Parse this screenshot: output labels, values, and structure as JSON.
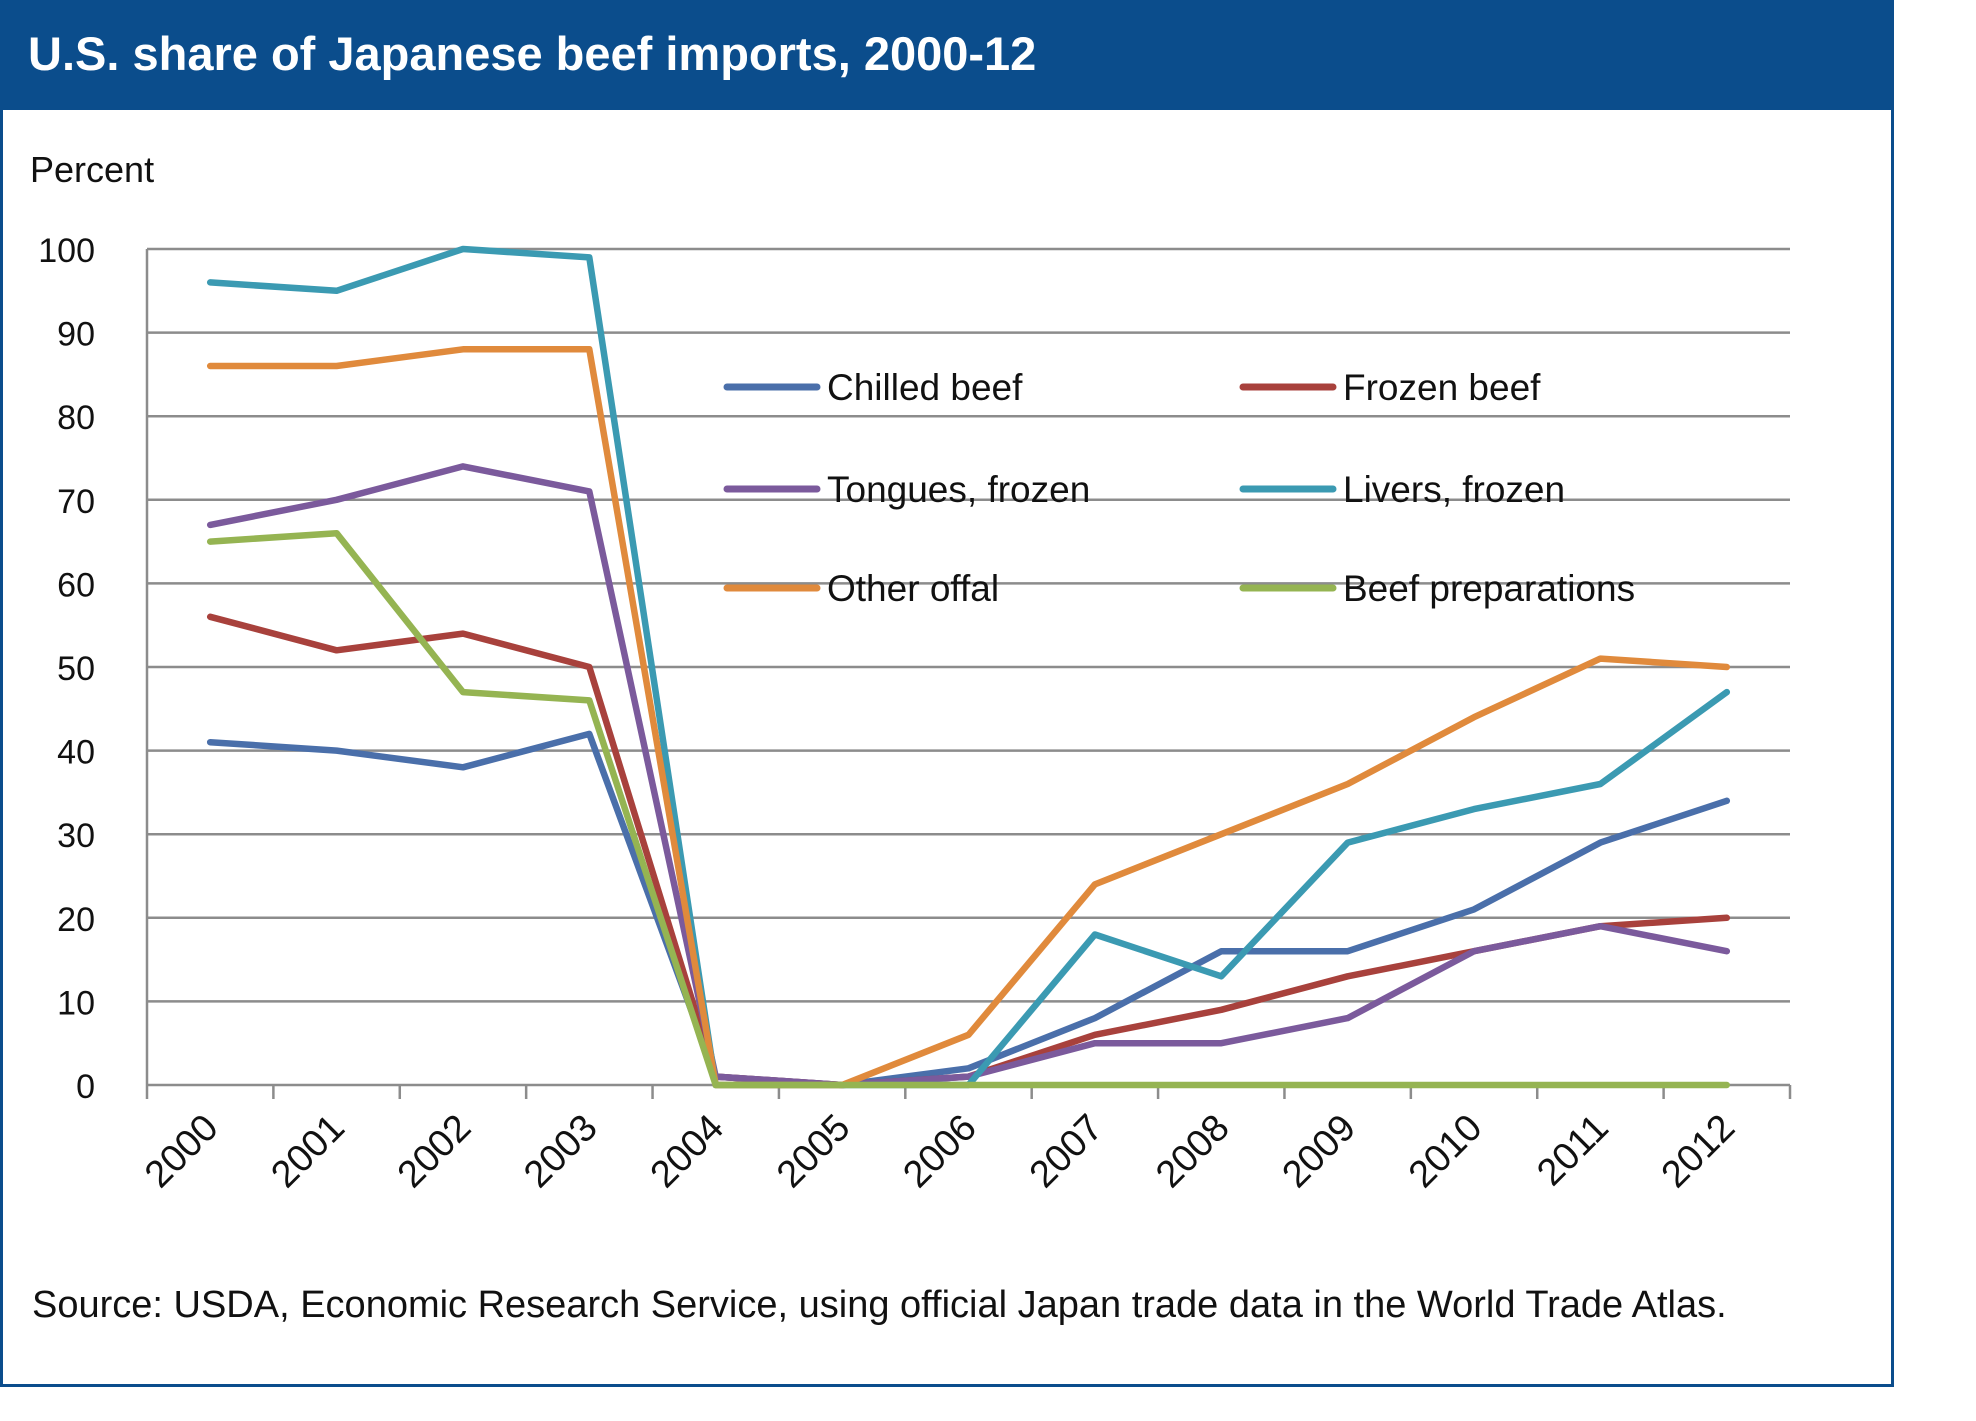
{
  "title": "U.S. share of Japanese beef imports, 2000-12",
  "source": "Source: USDA, Economic Research Service, using official Japan trade data in the World Trade Atlas.",
  "chart_data": {
    "type": "line",
    "title": "U.S. share of Japanese beef imports, 2000-12",
    "ylabel": "Percent",
    "xlabel": "",
    "ylim": [
      0,
      100
    ],
    "yticks": [
      "0",
      "10",
      "20",
      "30",
      "40",
      "50",
      "60",
      "70",
      "80",
      "90",
      "100"
    ],
    "categories": [
      "2000",
      "2001",
      "2002",
      "2003",
      "2004",
      "2005",
      "2006",
      "2007",
      "2008",
      "2009",
      "2010",
      "2011",
      "2012"
    ],
    "grid": "horizontal",
    "legend_position": "inside-top-right",
    "series": [
      {
        "name": "Chilled beef",
        "color": "#4a6faa",
        "values": [
          41,
          40,
          38,
          42,
          1,
          0,
          2,
          8,
          16,
          16,
          21,
          29,
          34
        ]
      },
      {
        "name": "Frozen beef",
        "color": "#a8413c",
        "values": [
          56,
          52,
          54,
          50,
          1,
          0,
          1,
          6,
          9,
          13,
          16,
          19,
          20
        ]
      },
      {
        "name": "Tongues, frozen",
        "color": "#7b5a9c",
        "values": [
          67,
          70,
          74,
          71,
          1,
          0,
          1,
          5,
          5,
          8,
          16,
          19,
          16
        ]
      },
      {
        "name": "Livers, frozen",
        "color": "#3b9ab2",
        "values": [
          96,
          95,
          100,
          99,
          0,
          0,
          0,
          18,
          13,
          29,
          33,
          36,
          47
        ]
      },
      {
        "name": "Other offal",
        "color": "#e08a3c",
        "values": [
          86,
          86,
          88,
          88,
          0,
          0,
          6,
          24,
          30,
          36,
          44,
          51,
          50
        ]
      },
      {
        "name": "Beef preparations",
        "color": "#95b452",
        "values": [
          65,
          66,
          47,
          46,
          0,
          0,
          0,
          0,
          0,
          0,
          0,
          0,
          0
        ]
      }
    ]
  }
}
